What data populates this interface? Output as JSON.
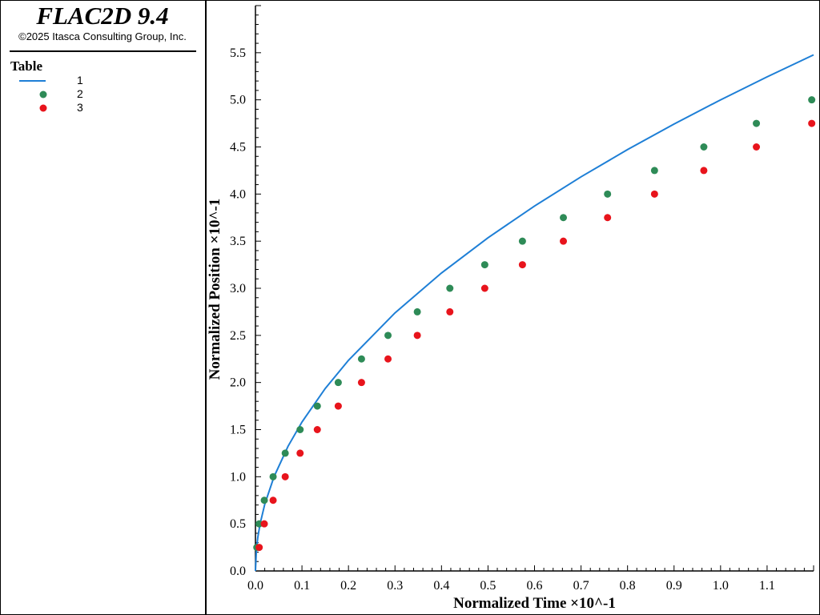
{
  "app": {
    "title": "FLAC2D 9.4",
    "copyright": "©2025 Itasca Consulting Group, Inc."
  },
  "legend": {
    "title": "Table",
    "items": [
      {
        "label": "1",
        "type": "line",
        "color": "#1e7fd6"
      },
      {
        "label": "2",
        "type": "marker",
        "color": "#2e8b57"
      },
      {
        "label": "3",
        "type": "marker",
        "color": "#e8141c"
      }
    ]
  },
  "chart_data": {
    "type": "scatter",
    "xlabel": "Normalized Time ×10^-1",
    "ylabel": "Normalized Position ×10^-1",
    "xlim": [
      0,
      1.2
    ],
    "ylim": [
      0,
      6.0
    ],
    "xticks": [
      "0.0",
      "0.1",
      "0.2",
      "0.3",
      "0.4",
      "0.5",
      "0.6",
      "0.7",
      "0.8",
      "0.9",
      "1.0",
      "1.1"
    ],
    "yticks": [
      "0.0",
      "0.5",
      "1.0",
      "1.5",
      "2.0",
      "2.5",
      "3.0",
      "3.5",
      "4.0",
      "4.5",
      "5.0",
      "5.5"
    ],
    "grid": false,
    "legend_position": "left-panel",
    "series": [
      {
        "name": "1",
        "type": "line",
        "color": "#1e7fd6",
        "x": [
          0,
          0.002,
          0.005,
          0.01,
          0.02,
          0.04,
          0.07,
          0.1,
          0.15,
          0.2,
          0.3,
          0.4,
          0.5,
          0.6,
          0.7,
          0.8,
          0.9,
          1.0,
          1.1,
          1.2
        ],
        "y": [
          0,
          0.224,
          0.354,
          0.5,
          0.707,
          1.0,
          1.323,
          1.581,
          1.936,
          2.236,
          2.739,
          3.162,
          3.536,
          3.873,
          4.183,
          4.472,
          4.743,
          5.0,
          5.244,
          5.477
        ]
      },
      {
        "name": "2",
        "type": "scatter",
        "color": "#2e8b57",
        "x": [
          0.003,
          0.008,
          0.019,
          0.038,
          0.064,
          0.096,
          0.133,
          0.178,
          0.228,
          0.285,
          0.348,
          0.418,
          0.493,
          0.574,
          0.662,
          0.757,
          0.858,
          0.964,
          1.077,
          1.196
        ],
        "y": [
          0.25,
          0.5,
          0.75,
          1.0,
          1.25,
          1.5,
          1.75,
          2.0,
          2.25,
          2.5,
          2.75,
          3.0,
          3.25,
          3.5,
          3.75,
          4.0,
          4.25,
          4.5,
          4.75,
          5.0
        ]
      },
      {
        "name": "3",
        "type": "scatter",
        "color": "#e8141c",
        "x": [
          0.008,
          0.019,
          0.038,
          0.064,
          0.096,
          0.133,
          0.178,
          0.228,
          0.285,
          0.348,
          0.418,
          0.493,
          0.574,
          0.662,
          0.757,
          0.858,
          0.964,
          1.077,
          1.196
        ],
        "y": [
          0.25,
          0.5,
          0.75,
          1.0,
          1.25,
          1.5,
          1.75,
          2.0,
          2.25,
          2.5,
          2.75,
          3.0,
          3.25,
          3.5,
          3.75,
          4.0,
          4.25,
          4.5,
          4.75
        ]
      }
    ]
  }
}
